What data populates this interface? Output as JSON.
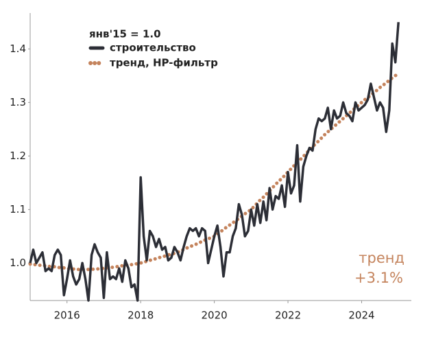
{
  "chart_data": {
    "type": "line",
    "annotations": [
      "янв'15 = 1.0",
      "тренд",
      "+3.1%"
    ],
    "xlim": [
      2015,
      2025.35
    ],
    "ylim": [
      0.93,
      1.467
    ],
    "xticks": [
      2016,
      2018,
      2020,
      2022,
      2024
    ],
    "yticks": [
      {
        "value": 1,
        "label": "1.0"
      },
      1.1,
      1.2,
      1.3,
      1.4
    ],
    "x": [
      2015,
      2015.083,
      2015.167,
      2015.25,
      2015.333,
      2015.417,
      2015.5,
      2015.583,
      2015.667,
      2015.75,
      2015.833,
      2015.917,
      2016,
      2016.083,
      2016.167,
      2016.25,
      2016.333,
      2016.417,
      2016.5,
      2016.583,
      2016.667,
      2016.75,
      2016.833,
      2016.917,
      2017,
      2017.083,
      2017.167,
      2017.25,
      2017.333,
      2017.417,
      2017.5,
      2017.583,
      2017.667,
      2017.75,
      2017.833,
      2017.917,
      2018,
      2018.083,
      2018.167,
      2018.25,
      2018.333,
      2018.417,
      2018.5,
      2018.583,
      2018.667,
      2018.75,
      2018.833,
      2018.917,
      2019,
      2019.083,
      2019.167,
      2019.25,
      2019.333,
      2019.417,
      2019.5,
      2019.583,
      2019.667,
      2019.75,
      2019.833,
      2019.917,
      2020,
      2020.083,
      2020.167,
      2020.25,
      2020.333,
      2020.417,
      2020.5,
      2020.583,
      2020.667,
      2020.75,
      2020.833,
      2020.917,
      2021,
      2021.083,
      2021.167,
      2021.25,
      2021.333,
      2021.417,
      2021.5,
      2021.583,
      2021.667,
      2021.75,
      2021.833,
      2021.917,
      2022,
      2022.083,
      2022.167,
      2022.25,
      2022.333,
      2022.417,
      2022.5,
      2022.583,
      2022.667,
      2022.75,
      2022.833,
      2022.917,
      2023,
      2023.083,
      2023.167,
      2023.25,
      2023.333,
      2023.417,
      2023.5,
      2023.583,
      2023.667,
      2023.75,
      2023.833,
      2023.917,
      2024,
      2024.083,
      2024.167,
      2024.25,
      2024.333,
      2024.417,
      2024.5,
      2024.583,
      2024.667,
      2024.75,
      2024.833,
      2024.917,
      2025
    ],
    "series": [
      {
        "name": "строительство",
        "color": "#2c2e36",
        "style": "solid",
        "values": [
          1.0,
          1.025,
          1.0,
          1.01,
          1.02,
          0.985,
          0.99,
          0.985,
          1.015,
          1.025,
          1.015,
          0.94,
          0.97,
          1.005,
          0.975,
          0.96,
          0.97,
          1.0,
          0.97,
          0.93,
          1.015,
          1.035,
          1.02,
          1.01,
          0.935,
          1.02,
          0.97,
          0.975,
          0.97,
          0.99,
          0.965,
          1.005,
          0.99,
          0.955,
          0.96,
          0.93,
          1.16,
          1.05,
          1.005,
          1.06,
          1.05,
          1.03,
          1.045,
          1.025,
          1.03,
          1.005,
          1.01,
          1.03,
          1.02,
          1.005,
          1.03,
          1.05,
          1.065,
          1.06,
          1.065,
          1.05,
          1.065,
          1.06,
          1.0,
          1.025,
          1.05,
          1.07,
          1.03,
          0.975,
          1.02,
          1.02,
          1.05,
          1.065,
          1.11,
          1.09,
          1.05,
          1.06,
          1.1,
          1.07,
          1.11,
          1.075,
          1.115,
          1.08,
          1.14,
          1.1,
          1.125,
          1.12,
          1.145,
          1.105,
          1.17,
          1.13,
          1.145,
          1.22,
          1.115,
          1.18,
          1.2,
          1.215,
          1.21,
          1.25,
          1.27,
          1.265,
          1.27,
          1.29,
          1.25,
          1.285,
          1.27,
          1.275,
          1.3,
          1.28,
          1.275,
          1.265,
          1.3,
          1.285,
          1.29,
          1.295,
          1.305,
          1.335,
          1.31,
          1.285,
          1.3,
          1.29,
          1.245,
          1.285,
          1.41,
          1.375,
          1.45
        ]
      },
      {
        "name": "тренд, HP-фильтр",
        "color": "#c4835c",
        "style": "dotted",
        "values": [
          0.998,
          0.997,
          0.997,
          0.996,
          0.995,
          0.995,
          0.994,
          0.993,
          0.993,
          0.992,
          0.991,
          0.991,
          0.99,
          0.989,
          0.989,
          0.988,
          0.988,
          0.988,
          0.988,
          0.988,
          0.988,
          0.989,
          0.989,
          0.99,
          0.99,
          0.991,
          0.992,
          0.992,
          0.993,
          0.994,
          0.995,
          0.996,
          0.997,
          0.997,
          0.998,
          0.999,
          1.0,
          1.002,
          1.003,
          1.005,
          1.007,
          1.008,
          1.01,
          1.012,
          1.013,
          1.015,
          1.017,
          1.018,
          1.02,
          1.023,
          1.025,
          1.028,
          1.03,
          1.033,
          1.035,
          1.038,
          1.04,
          1.043,
          1.045,
          1.048,
          1.05,
          1.054,
          1.058,
          1.063,
          1.067,
          1.071,
          1.075,
          1.079,
          1.083,
          1.088,
          1.092,
          1.096,
          1.1,
          1.106,
          1.112,
          1.118,
          1.123,
          1.129,
          1.135,
          1.141,
          1.147,
          1.153,
          1.158,
          1.164,
          1.17,
          1.176,
          1.182,
          1.188,
          1.193,
          1.199,
          1.205,
          1.211,
          1.217,
          1.223,
          1.228,
          1.234,
          1.24,
          1.245,
          1.25,
          1.255,
          1.26,
          1.265,
          1.27,
          1.275,
          1.28,
          1.285,
          1.29,
          1.295,
          1.3,
          1.305,
          1.309,
          1.314,
          1.318,
          1.323,
          1.328,
          1.332,
          1.337,
          1.341,
          1.346,
          1.35,
          1.355
        ]
      }
    ]
  }
}
